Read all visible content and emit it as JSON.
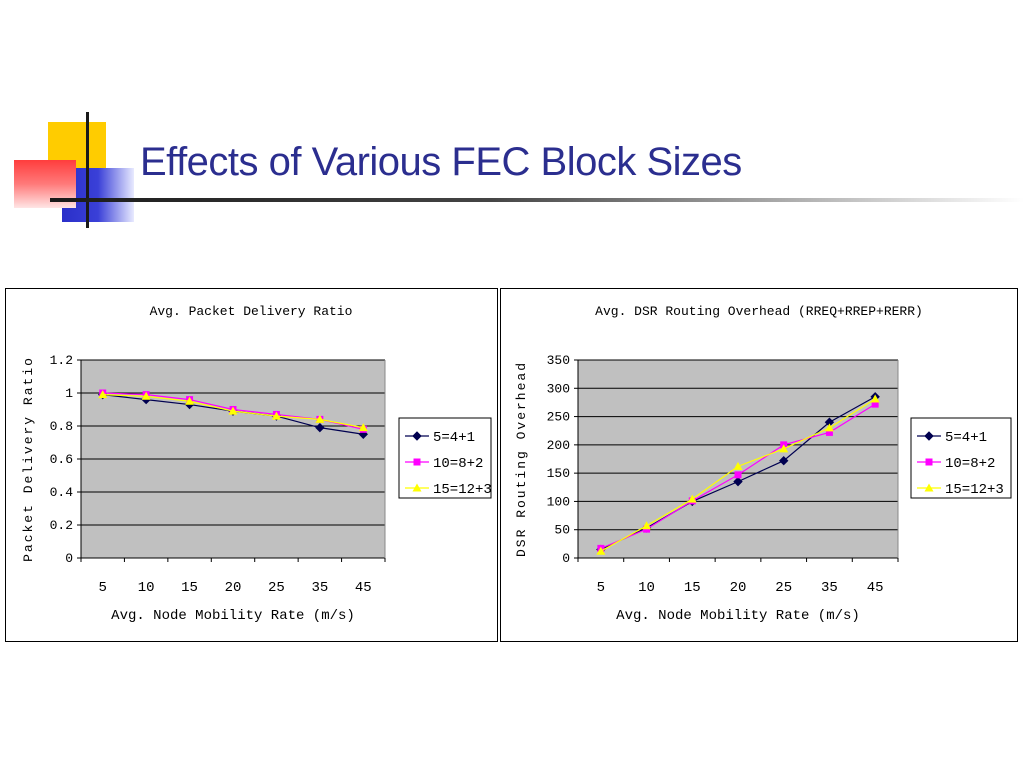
{
  "slide": {
    "title": "Effects of Various FEC Block Sizes"
  },
  "colors": {
    "title": "#2b2e8f",
    "plot_bg": "#c0c0c0",
    "series": [
      "#0a0a6e",
      "#ff00ff",
      "#ffff00"
    ]
  },
  "chart_data": [
    {
      "type": "line",
      "title": "Avg. Packet Delivery Ratio",
      "xlabel": "Avg. Node Mobility Rate (m/s)",
      "ylabel": "Packet Delivery Ratio",
      "categories": [
        "5",
        "10",
        "15",
        "20",
        "25",
        "35",
        "45"
      ],
      "yticks": [
        "0",
        "0.2",
        "0.4",
        "0.6",
        "0.8",
        "1",
        "1.2"
      ],
      "ylim": [
        0,
        1.2
      ],
      "grid": true,
      "legend": "right",
      "series": [
        {
          "name": "5=4+1",
          "marker": "diamond",
          "values": [
            0.99,
            0.96,
            0.93,
            0.89,
            0.86,
            0.79,
            0.75
          ]
        },
        {
          "name": "10=8+2",
          "marker": "square",
          "values": [
            1.0,
            0.99,
            0.96,
            0.9,
            0.87,
            0.84,
            0.78
          ]
        },
        {
          "name": "15=12+3",
          "marker": "triangle",
          "values": [
            0.99,
            0.98,
            0.95,
            0.89,
            0.86,
            0.84,
            0.79
          ]
        }
      ]
    },
    {
      "type": "line",
      "title": "Avg. DSR Routing Overhead (RREQ+RREP+RERR)",
      "xlabel": "Avg. Node Mobility Rate (m/s)",
      "ylabel": "DSR Routing Overhead",
      "categories": [
        "5",
        "10",
        "15",
        "20",
        "25",
        "35",
        "45"
      ],
      "yticks": [
        "0",
        "50",
        "100",
        "150",
        "200",
        "250",
        "300",
        "350"
      ],
      "ylim": [
        0,
        350
      ],
      "grid": true,
      "legend": "right",
      "series": [
        {
          "name": "5=4+1",
          "marker": "diamond",
          "values": [
            15,
            53,
            100,
            135,
            172,
            240,
            285
          ]
        },
        {
          "name": "10=8+2",
          "marker": "square",
          "values": [
            17,
            51,
            101,
            147,
            200,
            222,
            272
          ]
        },
        {
          "name": "15=12+3",
          "marker": "triangle",
          "values": [
            12,
            57,
            104,
            162,
            193,
            230,
            281
          ]
        }
      ]
    }
  ]
}
